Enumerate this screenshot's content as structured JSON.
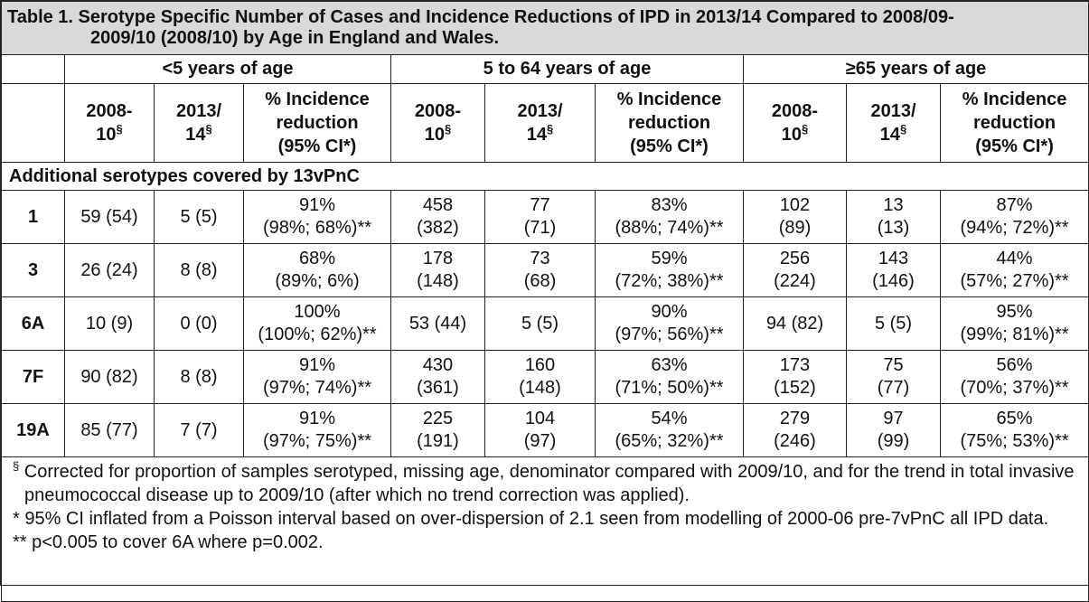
{
  "title_line1": "Table 1. Serotype Specific Number of Cases and Incidence Reductions of IPD in 2013/14 Compared to 2008/09-",
  "title_line2": "2009/10 (2008/10) by Age in England and Wales.",
  "groups": [
    "<5 years of age",
    "5 to 64 years of age",
    "≥65 years of age"
  ],
  "col_headers": {
    "c1_a": "2008-",
    "c1_b": "10",
    "c2_a": "2013/",
    "c2_b": "14",
    "c3_a": "% Incidence",
    "c3_b": "reduction",
    "c3_c": "(95% CI*)",
    "sup": "§"
  },
  "section_label": "Additional serotypes covered by 13vPnC",
  "rows": [
    {
      "serotype": "1",
      "u5": {
        "a": "59 (54)",
        "b": "5 (5)",
        "r1": "91%",
        "r2": "(98%; 68%)**"
      },
      "m": {
        "a1": "458",
        "a2": "(382)",
        "b1": "77",
        "b2": "(71)",
        "r1": "83%",
        "r2": "(88%; 74%)**"
      },
      "o": {
        "a1": "102",
        "a2": "(89)",
        "b1": "13",
        "b2": "(13)",
        "r1": "87%",
        "r2": "(94%; 72%)**"
      }
    },
    {
      "serotype": "3",
      "u5": {
        "a": "26 (24)",
        "b": "8 (8)",
        "r1": "68%",
        "r2": "(89%; 6%)"
      },
      "m": {
        "a1": "178",
        "a2": "(148)",
        "b1": "73",
        "b2": "(68)",
        "r1": "59%",
        "r2": "(72%; 38%)**"
      },
      "o": {
        "a1": "256",
        "a2": "(224)",
        "b1": "143",
        "b2": "(146)",
        "r1": "44%",
        "r2": "(57%; 27%)**"
      }
    },
    {
      "serotype": "6A",
      "u5": {
        "a": "10 (9)",
        "b": "0 (0)",
        "r1": "100%",
        "r2": "(100%; 62%)**"
      },
      "m": {
        "a1": "53 (44)",
        "a2": "",
        "b1": "5 (5)",
        "b2": "",
        "r1": "90%",
        "r2": "(97%; 56%)**"
      },
      "o": {
        "a1": "94 (82)",
        "a2": "",
        "b1": "5 (5)",
        "b2": "",
        "r1": "95%",
        "r2": "(99%; 81%)**"
      }
    },
    {
      "serotype": "7F",
      "u5": {
        "a": "90 (82)",
        "b": "8 (8)",
        "r1": "91%",
        "r2": "(97%; 74%)**"
      },
      "m": {
        "a1": "430",
        "a2": "(361)",
        "b1": "160",
        "b2": "(148)",
        "r1": "63%",
        "r2": "(71%; 50%)**"
      },
      "o": {
        "a1": "173",
        "a2": "(152)",
        "b1": "75",
        "b2": "(77)",
        "r1": "56%",
        "r2": "(70%; 37%)**"
      }
    },
    {
      "serotype": "19A",
      "u5": {
        "a": "85 (77)",
        "b": "7 (7)",
        "r1": "91%",
        "r2": "(97%; 75%)**"
      },
      "m": {
        "a1": "225",
        "a2": "(191)",
        "b1": "104",
        "b2": "(97)",
        "r1": "54%",
        "r2": "(65%; 32%)**"
      },
      "o": {
        "a1": "279",
        "a2": "(246)",
        "b1": "97",
        "b2": "(99)",
        "r1": "65%",
        "r2": "(75%; 53%)**"
      }
    }
  ],
  "footnotes": {
    "f1_mark": "§",
    "f1": "Corrected for proportion of samples serotyped, missing age, denominator compared with 2009/10, and for the trend in total invasive pneumococcal disease up to 2009/10 (after which no trend correction was applied).",
    "f2": "* 95% CI inflated from a Poisson interval based on over-dispersion of 2.1 seen from modelling of 2000-06 pre-7vPnC all IPD data.",
    "f3": "** p<0.005 to cover 6A where p=0.002."
  }
}
